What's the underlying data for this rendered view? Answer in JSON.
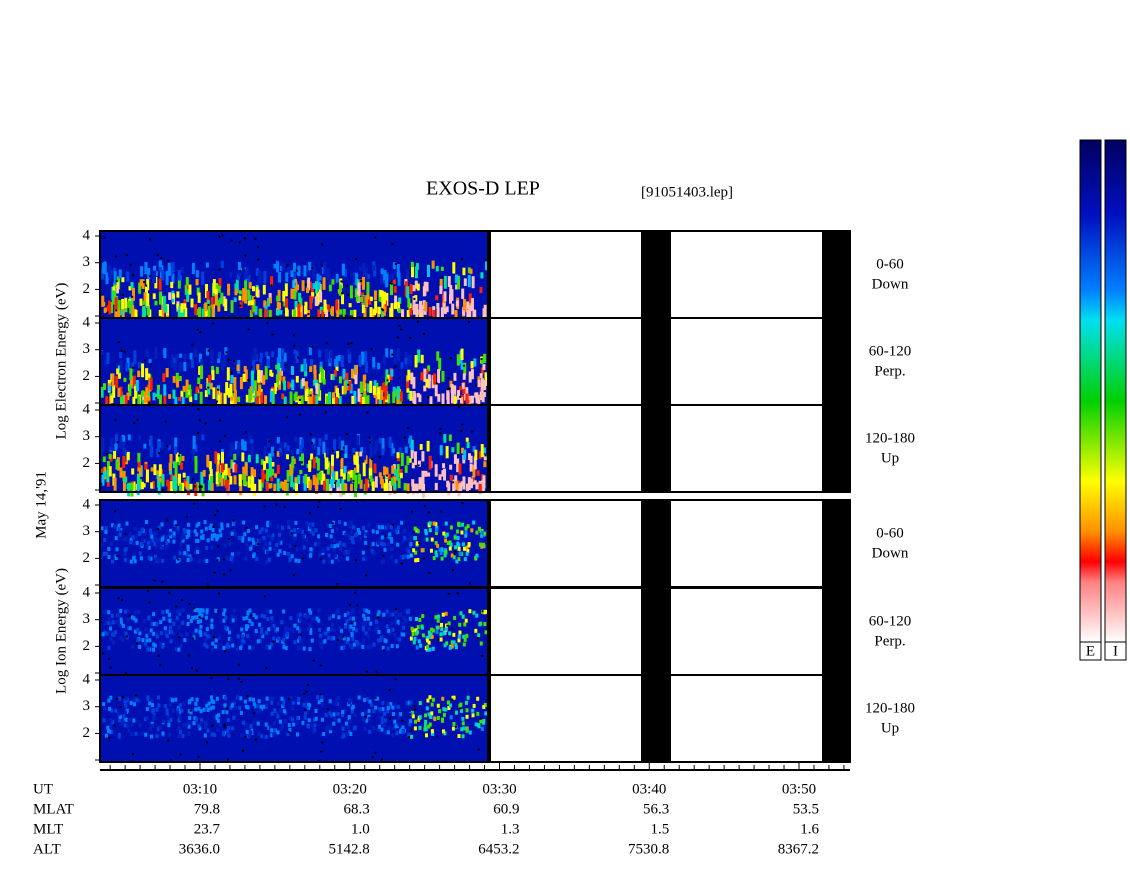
{
  "title": "EXOS-D LEP",
  "file": "[91051403.lep]",
  "date": "May 14,'91",
  "y_ticks": [
    4,
    3,
    2
  ],
  "electron": {
    "axis_label": "Log Electron Energy (eV)",
    "panels": [
      {
        "range": "0-60",
        "direction": "Down"
      },
      {
        "range": "60-120",
        "direction": "Perp."
      },
      {
        "range": "120-180",
        "direction": "Up"
      }
    ]
  },
  "ion": {
    "axis_label": "Log Ion Energy (eV)",
    "panels": [
      {
        "range": "0-60",
        "direction": "Down"
      },
      {
        "range": "60-120",
        "direction": "Perp."
      },
      {
        "range": "120-180",
        "direction": "Up"
      }
    ]
  },
  "ephemeris": [
    {
      "label": "UT",
      "values": [
        "03:10",
        "03:20",
        "03:30",
        "03:40",
        "03:50"
      ]
    },
    {
      "label": "MLAT",
      "values": [
        "79.8",
        "68.3",
        "60.9",
        "56.3",
        "53.5"
      ]
    },
    {
      "label": "MLT",
      "values": [
        "23.7",
        "1.0",
        "1.3",
        "1.5",
        "1.6"
      ]
    },
    {
      "label": "ALT",
      "values": [
        "3636.0",
        "5142.8",
        "6453.2",
        "7530.8",
        "8367.2"
      ]
    }
  ],
  "colorbars": [
    "E",
    "I"
  ]
}
